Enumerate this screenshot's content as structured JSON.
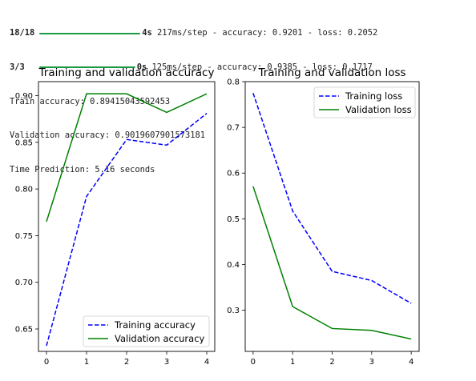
{
  "console": {
    "progress_lines": [
      {
        "steps": "18/18",
        "time": "4s",
        "rest": " 217ms/step - accuracy: 0.9201 - loss: 0.2052"
      },
      {
        "steps": "3/3",
        "time": "0s",
        "rest": " 125ms/step - accuracy: 0.9385 - loss: 0.1717"
      }
    ],
    "train_accuracy": "Train accuracy: 0.89415043592453",
    "validation_accuracy": "Validation accuracy: 0.9019607901573181",
    "time_prediction": "Time Prediction: 5.16 seconds"
  },
  "chart_data": [
    {
      "type": "line",
      "title": "Training and validation accuracy",
      "x": [
        0,
        1,
        2,
        3,
        4
      ],
      "xticks": [
        "0",
        "1",
        "2",
        "3",
        "4"
      ],
      "yticks": [
        "0.65",
        "0.70",
        "0.75",
        "0.80",
        "0.85",
        "0.90"
      ],
      "ylim": [
        0.626,
        0.915
      ],
      "xlim": [
        -0.2,
        4.2
      ],
      "legend_position": "lower-right",
      "series": [
        {
          "name": "Training accuracy",
          "values": [
            0.632,
            0.792,
            0.853,
            0.847,
            0.881
          ],
          "color": "#0000ff",
          "style": "dashed"
        },
        {
          "name": "Validation accuracy",
          "values": [
            0.765,
            0.902,
            0.902,
            0.882,
            0.902
          ],
          "color": "#008000",
          "style": "solid"
        }
      ]
    },
    {
      "type": "line",
      "title": "Training and validation loss",
      "x": [
        0,
        1,
        2,
        3,
        4
      ],
      "xticks": [
        "0",
        "1",
        "2",
        "3",
        "4"
      ],
      "yticks": [
        "0.3",
        "0.4",
        "0.5",
        "0.6",
        "0.7",
        "0.8"
      ],
      "ylim": [
        0.21,
        0.8
      ],
      "xlim": [
        -0.2,
        4.2
      ],
      "legend_position": "upper-right",
      "series": [
        {
          "name": "Training loss",
          "values": [
            0.775,
            0.517,
            0.385,
            0.365,
            0.315
          ],
          "color": "#0000ff",
          "style": "dashed"
        },
        {
          "name": "Validation loss",
          "values": [
            0.571,
            0.308,
            0.26,
            0.256,
            0.237
          ],
          "color": "#008000",
          "style": "solid"
        }
      ]
    }
  ]
}
